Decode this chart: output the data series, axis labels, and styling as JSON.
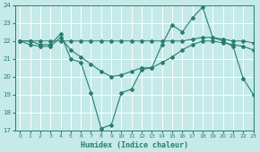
{
  "xlabel": "Humidex (Indice chaleur)",
  "bg_color": "#c5eae8",
  "grid_color": "#b0d8d5",
  "line_color": "#2a7d6e",
  "ylim": [
    17,
    24
  ],
  "xlim": [
    -0.5,
    23
  ],
  "yticks": [
    17,
    18,
    19,
    20,
    21,
    22,
    23,
    24
  ],
  "xticks": [
    0,
    1,
    2,
    3,
    4,
    5,
    6,
    7,
    8,
    9,
    10,
    11,
    12,
    13,
    14,
    15,
    16,
    17,
    18,
    19,
    20,
    21,
    22,
    23
  ],
  "series": [
    {
      "x": [
        0,
        1,
        2,
        3,
        4,
        5,
        6,
        7,
        8,
        9,
        10,
        11,
        12,
        13,
        14,
        15,
        16,
        17,
        18,
        19,
        20,
        21,
        22,
        23
      ],
      "y": [
        22,
        22,
        21.8,
        21.8,
        22.4,
        21.0,
        20.8,
        19.1,
        17.1,
        17.3,
        19.1,
        19.3,
        20.4,
        20.5,
        21.8,
        22.9,
        22.5,
        23.3,
        23.9,
        22.2,
        22.0,
        21.7,
        19.9,
        19.0
      ]
    },
    {
      "x": [
        0,
        1,
        2,
        3,
        4,
        5,
        6,
        7,
        8,
        9,
        10,
        11,
        12,
        13,
        14,
        15,
        16,
        17,
        18,
        19,
        20,
        21,
        22,
        23
      ],
      "y": [
        22,
        21.8,
        21.7,
        21.7,
        22.2,
        21.5,
        21.1,
        20.7,
        20.3,
        20.0,
        20.1,
        20.3,
        20.5,
        20.5,
        20.8,
        21.1,
        21.5,
        21.8,
        22.0,
        22.0,
        21.9,
        21.8,
        21.7,
        21.5
      ]
    },
    {
      "x": [
        0,
        1,
        2,
        3,
        4,
        5,
        6,
        7,
        8,
        9,
        10,
        11,
        12,
        13,
        14,
        15,
        16,
        17,
        18,
        19,
        20,
        21,
        22,
        23
      ],
      "y": [
        22,
        22,
        22,
        22,
        22,
        22,
        22,
        22,
        22,
        22,
        22,
        22,
        22,
        22,
        22,
        22,
        22,
        22.1,
        22.2,
        22.2,
        22.1,
        22.0,
        22.0,
        21.9
      ]
    }
  ]
}
